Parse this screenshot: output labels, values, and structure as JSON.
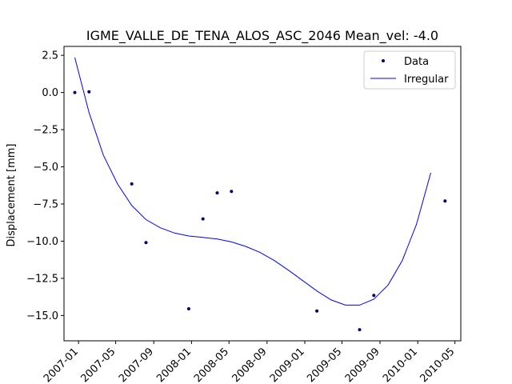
{
  "chart_data": {
    "type": "scatter",
    "title": "IGME_VALLE_DE_TENA_ALOS_ASC_2046     Mean_vel: -4.0",
    "xlabel": "",
    "ylabel": "Displacement [mm]",
    "xlim": [
      "2006-11-15",
      "2010-05-20"
    ],
    "ylim": [
      -16.7,
      3.1
    ],
    "x_ticks": [
      "2007-01",
      "2007-05",
      "2007-09",
      "2008-01",
      "2008-05",
      "2008-09",
      "2009-01",
      "2009-05",
      "2009-09",
      "2010-01",
      "2010-05"
    ],
    "y_ticks": [
      2.5,
      0.0,
      -2.5,
      -5.0,
      -7.5,
      -10.0,
      -12.5,
      -15.0
    ],
    "y_tick_labels": [
      "2.5",
      "0.0",
      "−2.5",
      "−5.0",
      "−7.5",
      "−10.0",
      "−12.5",
      "−15.0"
    ],
    "grid": false,
    "legend_position": "top-right",
    "series": [
      {
        "name": "Data",
        "kind": "scatter",
        "color": "#00006e",
        "points": [
          {
            "x": "2006-12-20",
            "y": 0.0
          },
          {
            "x": "2007-02-04",
            "y": 0.05
          },
          {
            "x": "2007-06-22",
            "y": -6.15
          },
          {
            "x": "2007-08-07",
            "y": -10.1
          },
          {
            "x": "2007-12-23",
            "y": -14.55
          },
          {
            "x": "2008-02-07",
            "y": -8.5
          },
          {
            "x": "2008-03-24",
            "y": -6.75
          },
          {
            "x": "2008-05-09",
            "y": -6.65
          },
          {
            "x": "2009-02-09",
            "y": -14.7
          },
          {
            "x": "2009-06-27",
            "y": -15.95
          },
          {
            "x": "2009-08-12",
            "y": -13.65
          },
          {
            "x": "2010-03-30",
            "y": -7.3
          }
        ]
      },
      {
        "name": "Irregular",
        "kind": "line",
        "color": "#0000ff",
        "points": [
          {
            "x": "2006-12-20",
            "y": 2.35
          },
          {
            "x": "2007-02-04",
            "y": -1.35
          },
          {
            "x": "2007-03-22",
            "y": -4.2
          },
          {
            "x": "2007-05-07",
            "y": -6.15
          },
          {
            "x": "2007-06-22",
            "y": -7.6
          },
          {
            "x": "2007-08-07",
            "y": -8.55
          },
          {
            "x": "2007-09-22",
            "y": -9.1
          },
          {
            "x": "2007-11-07",
            "y": -9.45
          },
          {
            "x": "2007-12-23",
            "y": -9.65
          },
          {
            "x": "2008-02-07",
            "y": -9.75
          },
          {
            "x": "2008-03-24",
            "y": -9.85
          },
          {
            "x": "2008-05-09",
            "y": -10.05
          },
          {
            "x": "2008-06-24",
            "y": -10.35
          },
          {
            "x": "2008-08-09",
            "y": -10.75
          },
          {
            "x": "2008-09-24",
            "y": -11.3
          },
          {
            "x": "2008-11-09",
            "y": -11.95
          },
          {
            "x": "2008-12-25",
            "y": -12.65
          },
          {
            "x": "2009-02-09",
            "y": -13.35
          },
          {
            "x": "2009-03-27",
            "y": -13.95
          },
          {
            "x": "2009-05-12",
            "y": -14.3
          },
          {
            "x": "2009-06-27",
            "y": -14.3
          },
          {
            "x": "2009-08-12",
            "y": -13.9
          },
          {
            "x": "2009-09-27",
            "y": -12.95
          },
          {
            "x": "2009-11-12",
            "y": -11.3
          },
          {
            "x": "2009-12-28",
            "y": -8.85
          },
          {
            "x": "2010-02-12",
            "y": -5.4
          }
        ]
      }
    ]
  }
}
